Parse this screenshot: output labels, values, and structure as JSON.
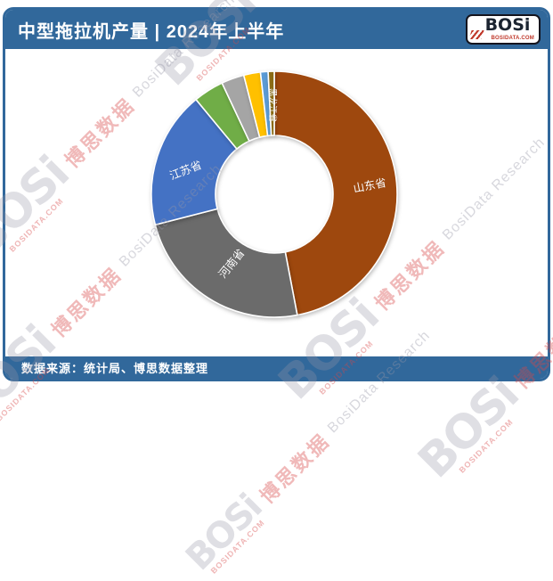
{
  "header": {
    "title": "中型拖拉机产量 | 2024年上半年"
  },
  "logo": {
    "name": "BOSi",
    "site": "BOSIDATA.COM"
  },
  "footer": {
    "source": "数据来源：统计局、博思数据整理"
  },
  "watermark": {
    "brand": "BOSi",
    "site": "BOSIDATA.COM",
    "cn": "博思数据",
    "en": "BosiData Research"
  },
  "colors": {
    "frame_blue": "#31689B",
    "logo_red": "#C0392B",
    "label_text": "#FFFFFF"
  },
  "chart_data": {
    "type": "pie",
    "subtype": "donut",
    "title": "中型拖拉机产量 | 2024年上半年",
    "values_are": "estimated_share_percent_from_arc_angles",
    "start_angle_deg": 0,
    "direction": "clockwise",
    "donut_hole_ratio": 0.48,
    "legend": "none",
    "segments": [
      {
        "label": "山东省",
        "share_pct": 47.0,
        "color": "#9E480E"
      },
      {
        "label": "河南省",
        "share_pct": 24.0,
        "color": "#6B6B6B"
      },
      {
        "label": "江苏省",
        "share_pct": 18.0,
        "color": "#4472C4"
      },
      {
        "label": "",
        "share_pct": 4.0,
        "color": "#70AD47"
      },
      {
        "label": "",
        "share_pct": 3.0,
        "color": "#A5A5A5"
      },
      {
        "label": "",
        "share_pct": 2.2,
        "color": "#FFC000"
      },
      {
        "label": "",
        "share_pct": 1.0,
        "color": "#5B9BD5"
      },
      {
        "label": "黑龙江省",
        "share_pct": 0.8,
        "color": "#8A6B15"
      }
    ]
  }
}
